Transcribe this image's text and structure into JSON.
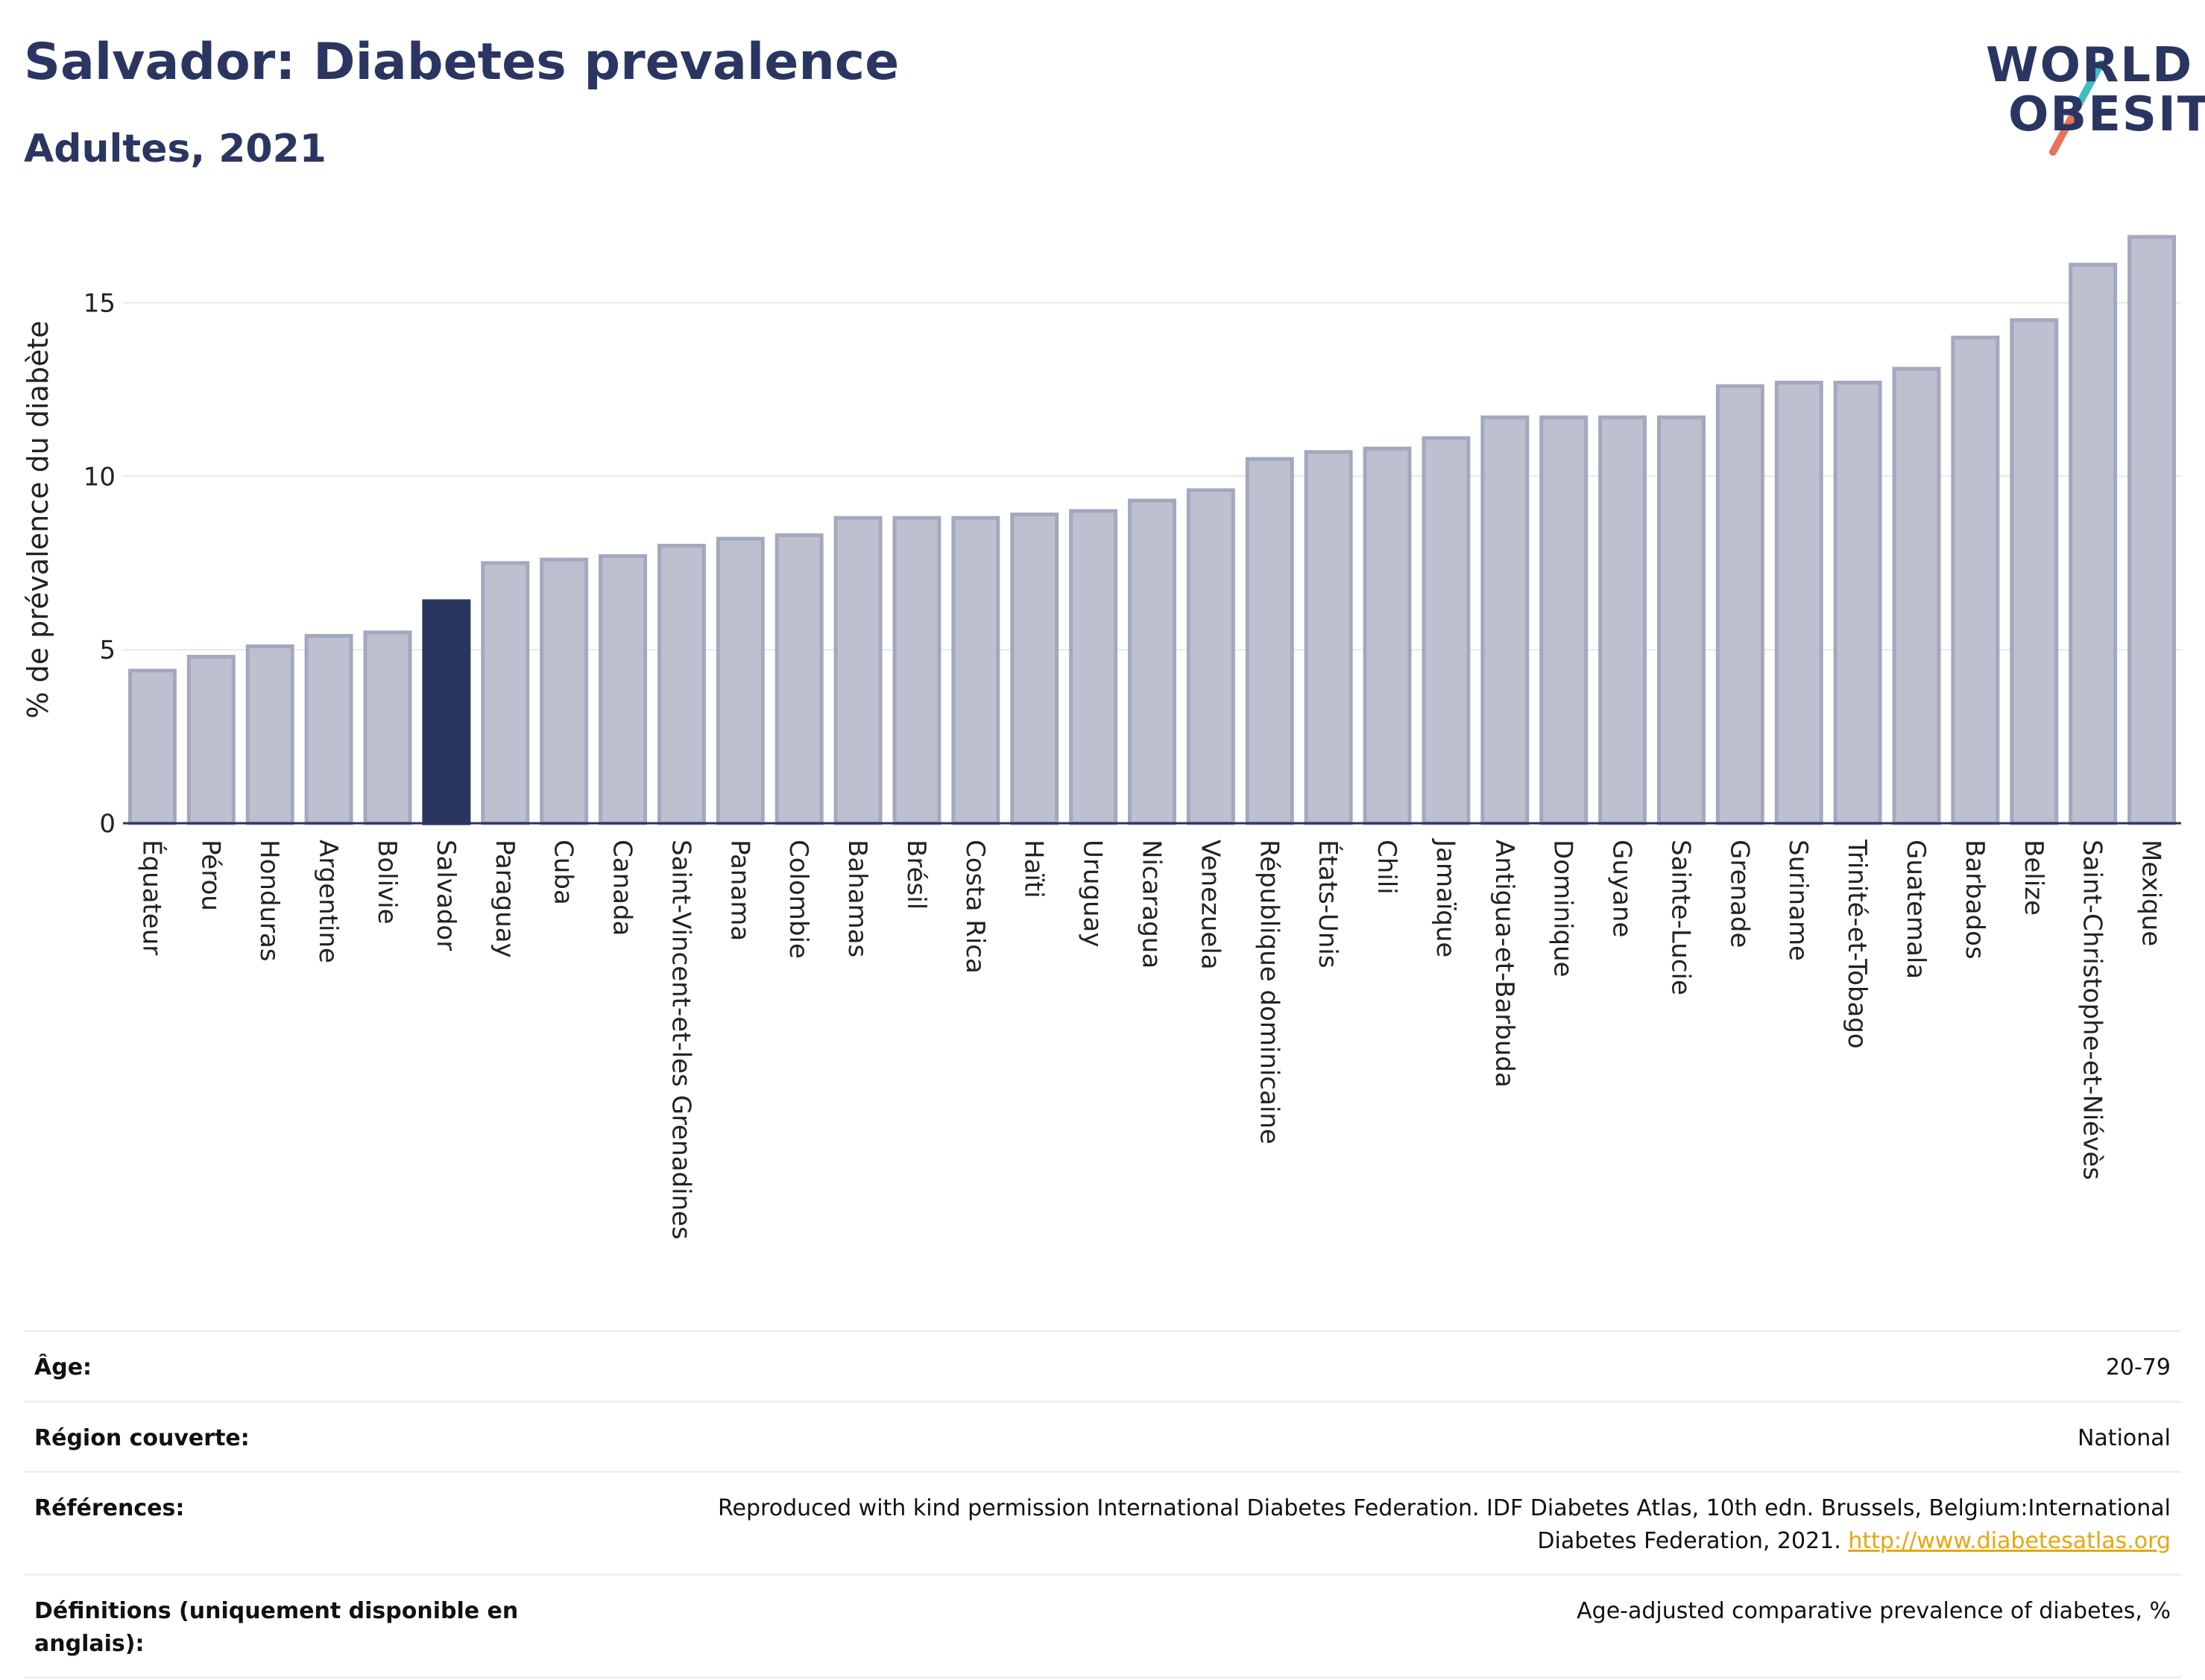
{
  "header": {
    "title": "Salvador: Diabetes prevalence",
    "subtitle": "Adultes, 2021"
  },
  "logo": {
    "line1": "WORLD",
    "line2": "OBESITY"
  },
  "chart_data": {
    "type": "bar",
    "ylabel": "% de prévalence du diabète",
    "ylim": [
      0,
      17.5
    ],
    "yticks": [
      0,
      5,
      10,
      15
    ],
    "grid": true,
    "highlight": "Salvador",
    "colors": {
      "bar": "#bcc0cf",
      "bar_border": "#a3a8bf",
      "highlight": "#2a3560",
      "axis": "#2a3560",
      "grid": "#e6e8ee"
    },
    "categories": [
      "Équateur",
      "Pérou",
      "Honduras",
      "Argentine",
      "Bolivie",
      "Salvador",
      "Paraguay",
      "Cuba",
      "Canada",
      "Saint-Vincent-et-les Grenadines",
      "Panama",
      "Colombie",
      "Bahamas",
      "Brésil",
      "Costa Rica",
      "Haïti",
      "Uruguay",
      "Nicaragua",
      "Venezuela",
      "République dominicaine",
      "États-Unis",
      "Chili",
      "Jamaïque",
      "Antigua-et-Barbuda",
      "Dominique",
      "Guyane",
      "Sainte-Lucie",
      "Grenade",
      "Suriname",
      "Trinité-et-Tobago",
      "Guatemala",
      "Barbados",
      "Belize",
      "Saint-Christophe-et-Niévès",
      "Mexique"
    ],
    "values": [
      4.4,
      4.8,
      5.1,
      5.4,
      5.5,
      6.4,
      7.5,
      7.6,
      7.7,
      8.0,
      8.2,
      8.3,
      8.8,
      8.8,
      8.8,
      8.9,
      9.0,
      9.3,
      9.6,
      10.5,
      10.7,
      10.8,
      11.1,
      11.7,
      11.7,
      11.7,
      11.7,
      12.6,
      12.7,
      12.7,
      13.1,
      14.0,
      14.5,
      16.1,
      16.9
    ]
  },
  "info": {
    "rows": [
      {
        "label": "Âge:",
        "value": "20-79"
      },
      {
        "label": "Région couverte:",
        "value": "National"
      },
      {
        "label": "Références:",
        "value": "Reproduced with kind permission International Diabetes Federation.  IDF Diabetes Atlas, 10th edn. Brussels, Belgium:International Diabetes Federation, 2021. ",
        "link": "http://www.diabetesatlas.org"
      },
      {
        "label": "Définitions (uniquement disponible en anglais):",
        "value": "Age-adjusted comparative prevalence of diabetes, %"
      }
    ]
  }
}
